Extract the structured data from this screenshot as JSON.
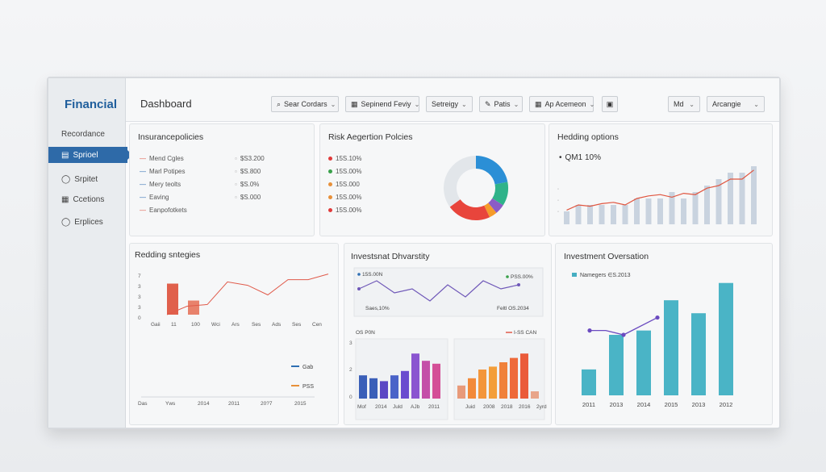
{
  "app": {
    "brand": "Financial",
    "page_title": "Dashboard"
  },
  "sidebar": {
    "items": [
      {
        "label": "Recordance",
        "icon": "none",
        "active": false
      },
      {
        "label": "Sprioel",
        "icon": "list-icon",
        "active": true
      },
      {
        "label": "Srpitet",
        "icon": "circle-icon",
        "active": false
      },
      {
        "label": "Ccetions",
        "icon": "building-icon",
        "active": false
      },
      {
        "label": "Erplices",
        "icon": "circle-icon",
        "active": false
      }
    ]
  },
  "toolbar": {
    "items": [
      {
        "label": "Sear Cordars",
        "icon": "search-icon"
      },
      {
        "label": "Sepinend Feviy",
        "icon": "grid-icon"
      },
      {
        "label": "Setreigy",
        "icon": "none"
      },
      {
        "label": "Patis",
        "icon": "edit-icon"
      },
      {
        "label": "Ap Acemeon",
        "icon": "grid-icon"
      }
    ],
    "calendar_icon": "calendar-icon",
    "select_md": "Md",
    "select_arrange": "Arcangie"
  },
  "insurance": {
    "title": "Insurancepolicies",
    "rows": [
      {
        "label": "Mend Cgles",
        "value": "$S3.200",
        "color": "#e05a4a"
      },
      {
        "label": "Marl Potipes",
        "value": "$S.800",
        "color": "#2f6fb3"
      },
      {
        "label": "Mery teolts",
        "value": "$S.0%",
        "color": "#2f6fb3"
      },
      {
        "label": "Eaving",
        "value": "$S.000",
        "color": "#2f6fb3"
      },
      {
        "label": "Eanpofotkets",
        "value": "",
        "color": "#e05a4a"
      }
    ]
  },
  "risk": {
    "title": "Risk Aegertion Polcies",
    "legend": [
      {
        "label": "15S.10%",
        "color": "#e03b3b"
      },
      {
        "label": "15S.00%",
        "color": "#3aa04a"
      },
      {
        "label": "15S.000",
        "color": "#e7903a"
      },
      {
        "label": "15S.00%",
        "color": "#e7903a"
      },
      {
        "label": "15S.00%",
        "color": "#e03b3b"
      }
    ],
    "chart_data": {
      "type": "pie",
      "values": [
        22,
        12,
        5,
        4,
        22,
        35
      ],
      "colors": [
        "#2b8fd6",
        "#2fb38a",
        "#8b5cc6",
        "#f59b2b",
        "#e8453c",
        "#e2e6ea"
      ]
    }
  },
  "hedging": {
    "title": "Hedding options",
    "stat": "QM1 10%",
    "chart_data": {
      "type": "bar",
      "values": [
        2,
        3,
        3,
        3,
        3,
        3,
        4,
        4,
        4,
        5,
        4,
        5,
        6,
        7,
        8,
        8,
        9
      ],
      "line": [
        2.2,
        3,
        2.8,
        3.2,
        3.4,
        3,
        4,
        4.4,
        4.6,
        4.2,
        4.8,
        4.6,
        5.6,
        6,
        7,
        7,
        8.4
      ],
      "ylim": [
        0,
        10
      ]
    }
  },
  "redding": {
    "title": "Redding sntegies",
    "ytick_labels": [
      "7",
      "3",
      "3",
      "3",
      "0"
    ],
    "xtick_labels": [
      "Gaii",
      "11",
      "100",
      "Wci",
      "Ars",
      "Ses",
      "Ads",
      "Ses",
      "Cen"
    ],
    "bottom_labels": [
      "Das",
      "Yws",
      "2014",
      "2011",
      "20?7",
      "2015"
    ],
    "legend": [
      {
        "label": "Gab",
        "color": "#2f6fb3"
      },
      {
        "label": "PSS",
        "color": "#e7903a"
      }
    ],
    "chart_data": {
      "type": "bar",
      "categories": [
        "Gaii",
        "11",
        "100",
        "Wci",
        "Ars",
        "Ses",
        "Ads",
        "Ses",
        "Cen"
      ],
      "bars": [
        5.5,
        2.5
      ],
      "line": [
        0,
        1.5,
        1.8,
        5.8,
        5.2,
        3.5,
        6.2,
        6.2,
        7.2
      ],
      "ylim": [
        0,
        8
      ]
    }
  },
  "diversity": {
    "title": "Investsnat Dhvarstity",
    "line_labels": {
      "tl": "15S.00N",
      "tr": "PSS.00%",
      "bl": "Saes,10%",
      "br": "Feltl OS.2034"
    },
    "line_chart": {
      "type": "line",
      "values": [
        4,
        6,
        3,
        4,
        1,
        5,
        2,
        6,
        4,
        5
      ]
    },
    "left_bar_label_left": "OS P0N",
    "left_bar_label_right": "I-SS CAN",
    "left_yticks": [
      "3",
      "2",
      "0"
    ],
    "left_xticks": [
      "Mof",
      "2014",
      "Juld",
      "AJb",
      "2011"
    ],
    "left_bars": {
      "type": "bar",
      "values": [
        [
          1.6,
          "#3a5fb8"
        ],
        [
          1.4,
          "#3a5fb8"
        ],
        [
          1.2,
          "#5b47c4"
        ],
        [
          1.6,
          "#4a63c8"
        ],
        [
          1.9,
          "#6a4ccf"
        ],
        [
          3.1,
          "#8a55d0"
        ],
        [
          2.6,
          "#c44fa8"
        ],
        [
          2.4,
          "#d44f97"
        ]
      ]
    },
    "right_xticks": [
      "Juid",
      "2008",
      "2018",
      "2016",
      "2yrd"
    ],
    "right_bars": {
      "type": "bar",
      "values": [
        [
          0.9,
          "#e89a7a"
        ],
        [
          1.4,
          "#f28a3a"
        ],
        [
          2.0,
          "#f3963b"
        ],
        [
          2.2,
          "#f39e3a"
        ],
        [
          2.5,
          "#f0813a"
        ],
        [
          2.8,
          "#ee6a3a"
        ],
        [
          3.1,
          "#ea5b3a"
        ],
        [
          0.5,
          "#e8a58a"
        ]
      ]
    }
  },
  "oversation": {
    "title": "Investment Oversation",
    "legend": "Namegers ∈S.2013",
    "xticks": [
      "2011",
      "2013",
      "2014",
      "2015",
      "2013",
      "2012"
    ],
    "chart_data": {
      "type": "bar",
      "values": [
        3,
        7,
        7.5,
        11,
        9.5,
        13
      ],
      "line": [
        7.5,
        7.5,
        7,
        9
      ],
      "ylim": [
        0,
        14
      ]
    }
  }
}
